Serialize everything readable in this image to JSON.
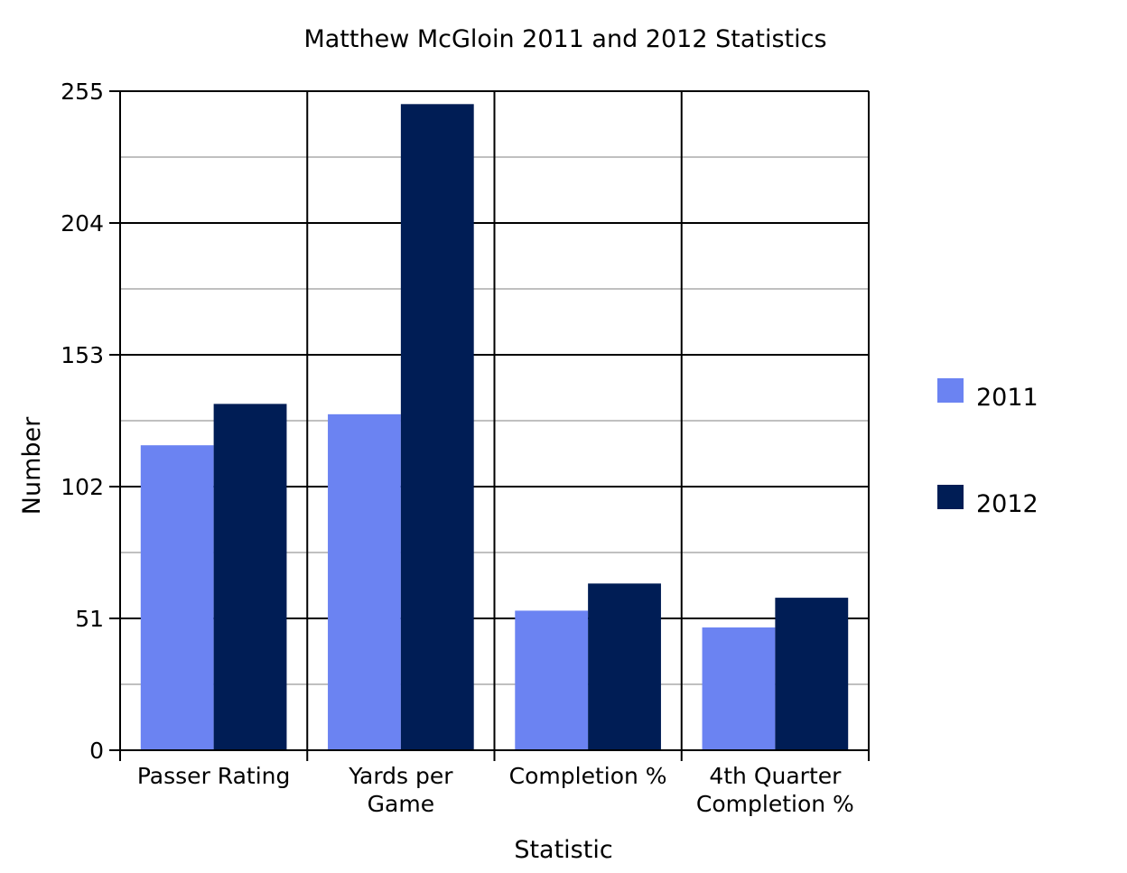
{
  "chart_data": {
    "type": "bar",
    "title": "Matthew McGloin 2011 and 2012 Statistics",
    "xlabel": "Statistic",
    "ylabel": "Number",
    "categories": [
      [
        "Passer Rating"
      ],
      [
        "Yards per",
        "Game"
      ],
      [
        "Completion %"
      ],
      [
        "4th Quarter",
        "Completion %"
      ]
    ],
    "series": [
      {
        "name": "2011",
        "color": "#6b83f2",
        "values": [
          118.0,
          130.0,
          54.0,
          47.5
        ]
      },
      {
        "name": "2012",
        "color": "#001d55",
        "values": [
          134.0,
          250.0,
          64.5,
          59.0
        ]
      }
    ],
    "ylim": [
      0,
      255
    ],
    "yticks": [
      "0",
      "51",
      "102",
      "153",
      "204",
      "255"
    ],
    "grid": true,
    "legend": "right"
  }
}
